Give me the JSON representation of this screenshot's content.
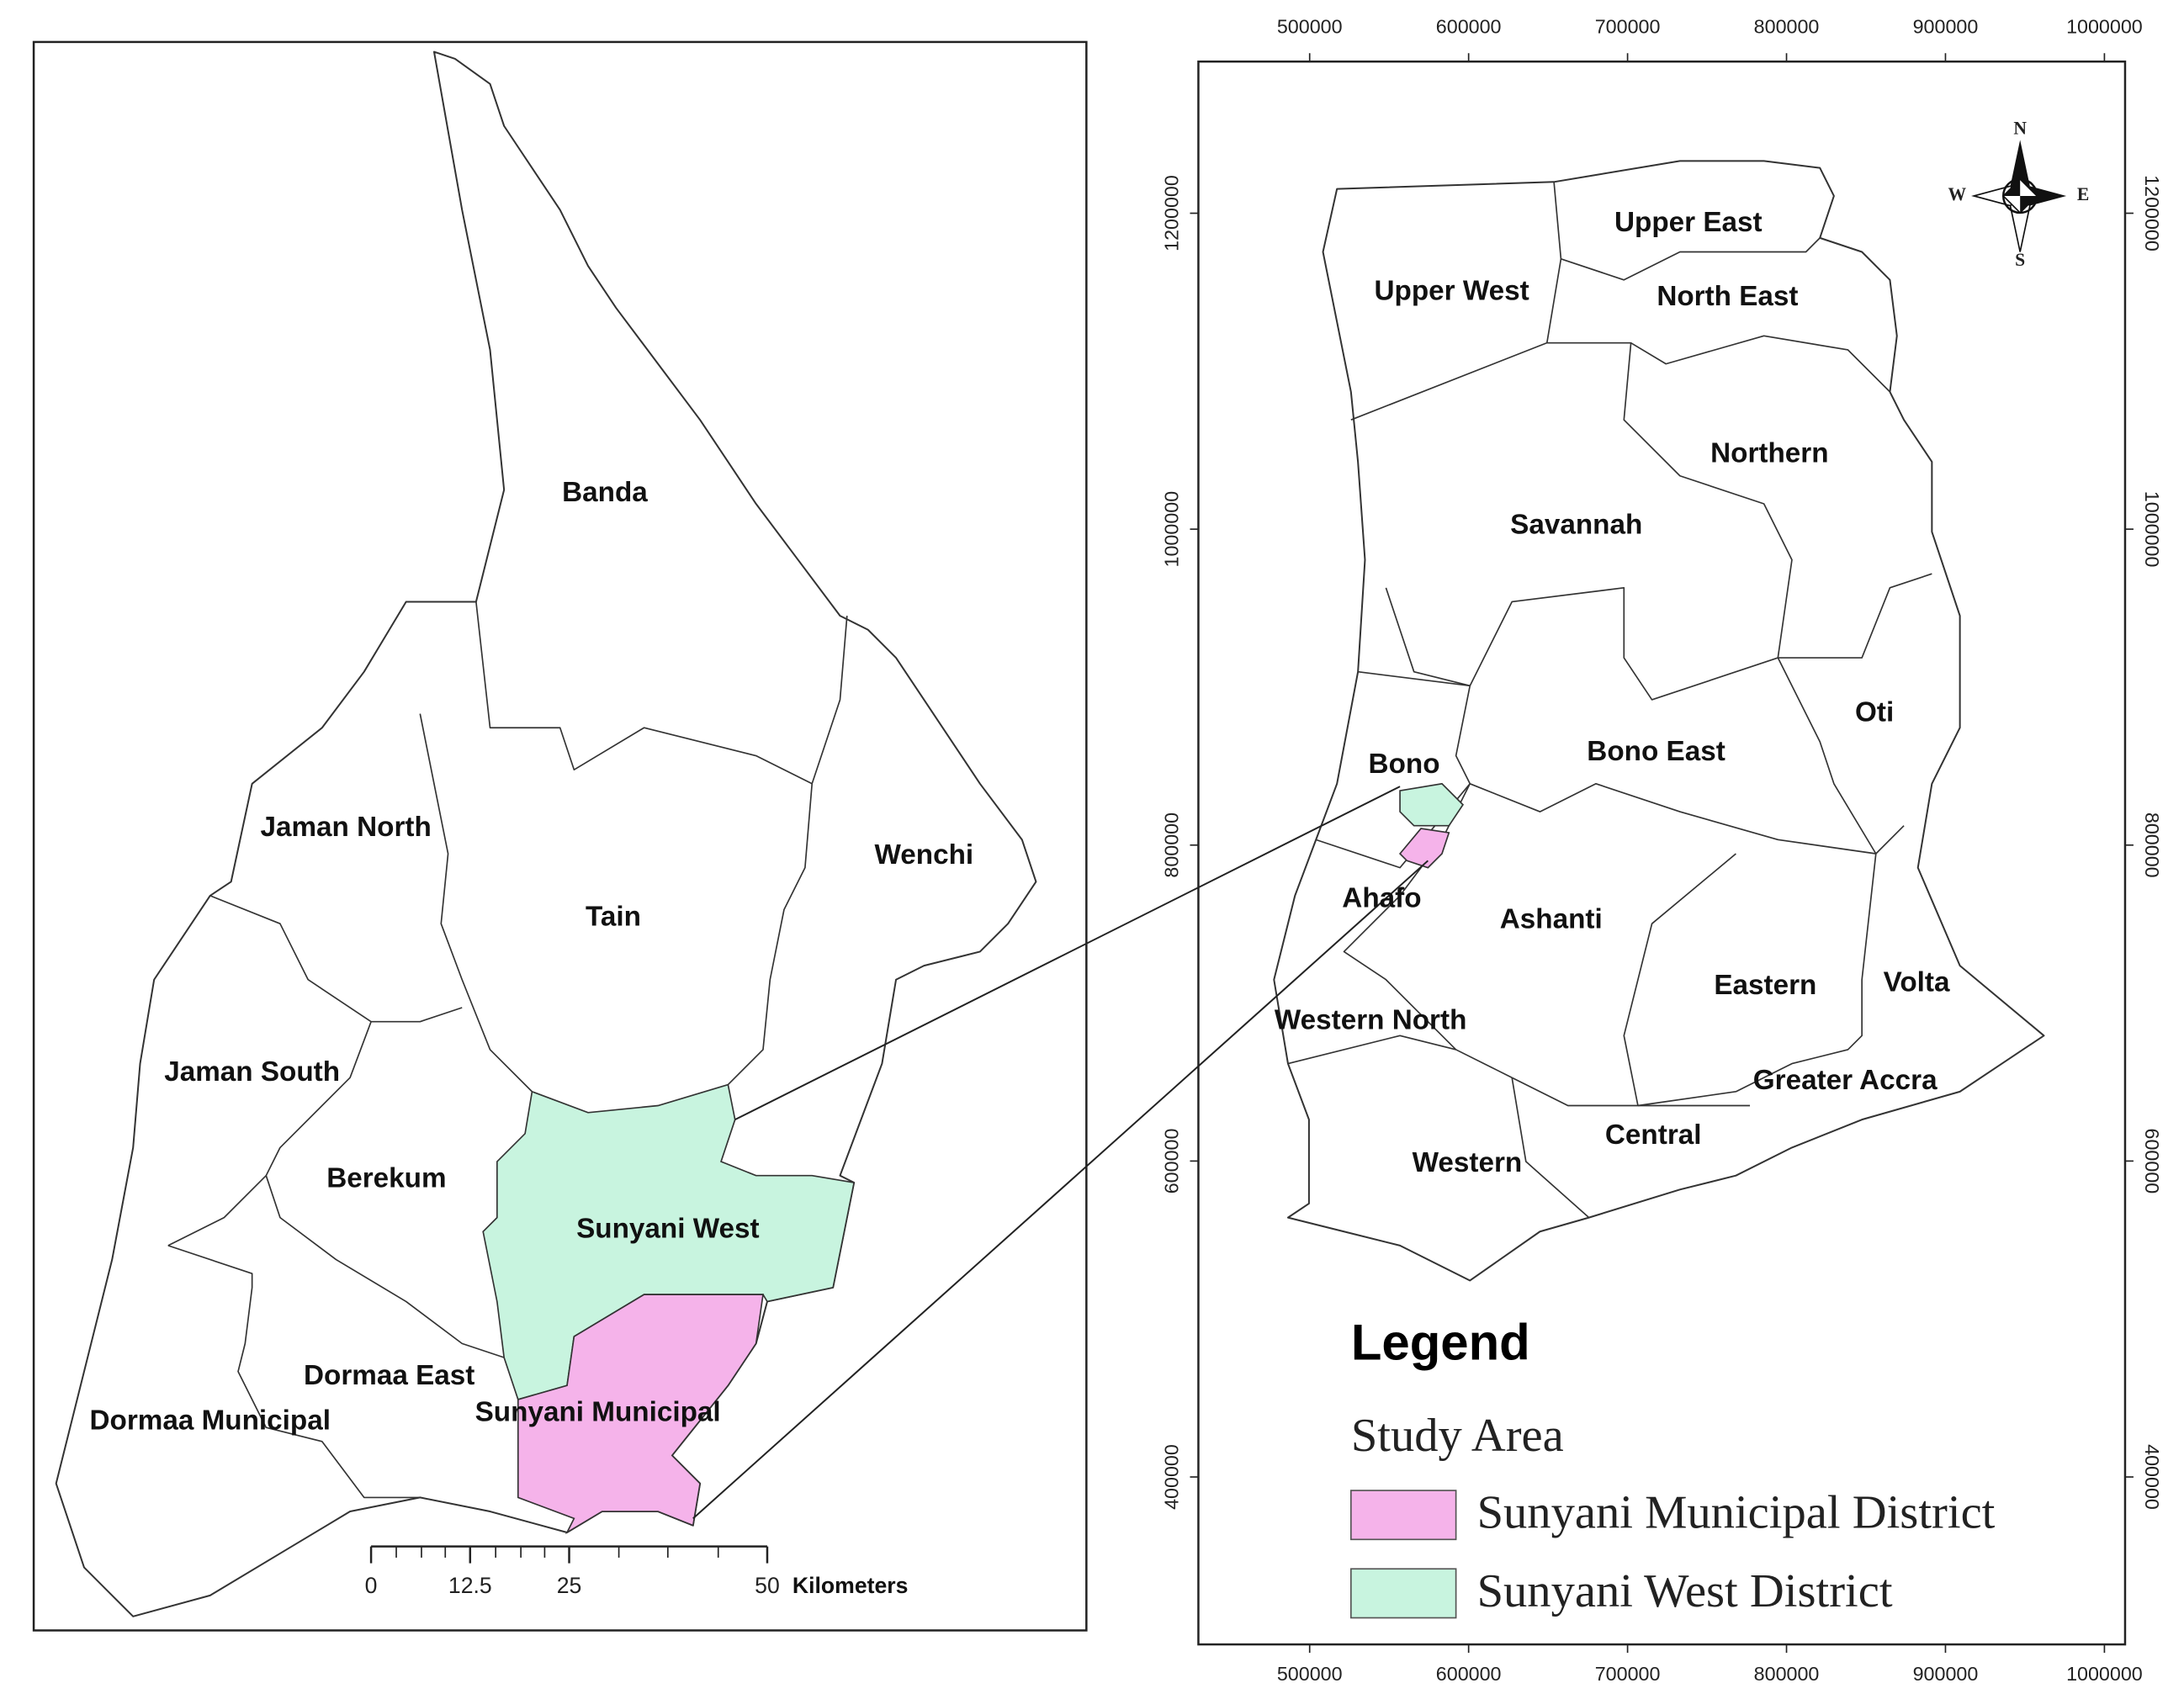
{
  "district_map": {
    "districts": [
      "Banda",
      "Jaman North",
      "Tain",
      "Wenchi",
      "Jaman South",
      "Berekum",
      "Sunyani West",
      "Dormaa East",
      "Dormaa Municipal",
      "Sunyani Municipal"
    ],
    "scale_bar": {
      "ticks": [
        0,
        12.5,
        25,
        50
      ],
      "unit": "Kilometers"
    }
  },
  "region_map": {
    "regions": [
      "Upper East",
      "Upper West",
      "North East",
      "Northern",
      "Savannah",
      "Oti",
      "Bono East",
      "Bono",
      "Ahafo",
      "Ashanti",
      "Eastern",
      "Volta",
      "Western North",
      "Greater Accra",
      "Central",
      "Western"
    ],
    "xlim": [
      430000,
      1013000
    ],
    "ylim": [
      294000,
      1296000
    ],
    "xticks": [
      500000,
      600000,
      700000,
      800000,
      900000,
      1000000
    ],
    "yticks": [
      400000,
      600000,
      800000,
      1000000,
      1200000
    ],
    "compass": {
      "n": "N",
      "s": "S",
      "e": "E",
      "w": "W"
    }
  },
  "legend": {
    "title": "Legend",
    "subtitle": "Study Area",
    "items": [
      {
        "label": "Sunyani Municipal District",
        "color": "#f5b3ea"
      },
      {
        "label": "Sunyani West District",
        "color": "#c8f4df"
      }
    ]
  }
}
